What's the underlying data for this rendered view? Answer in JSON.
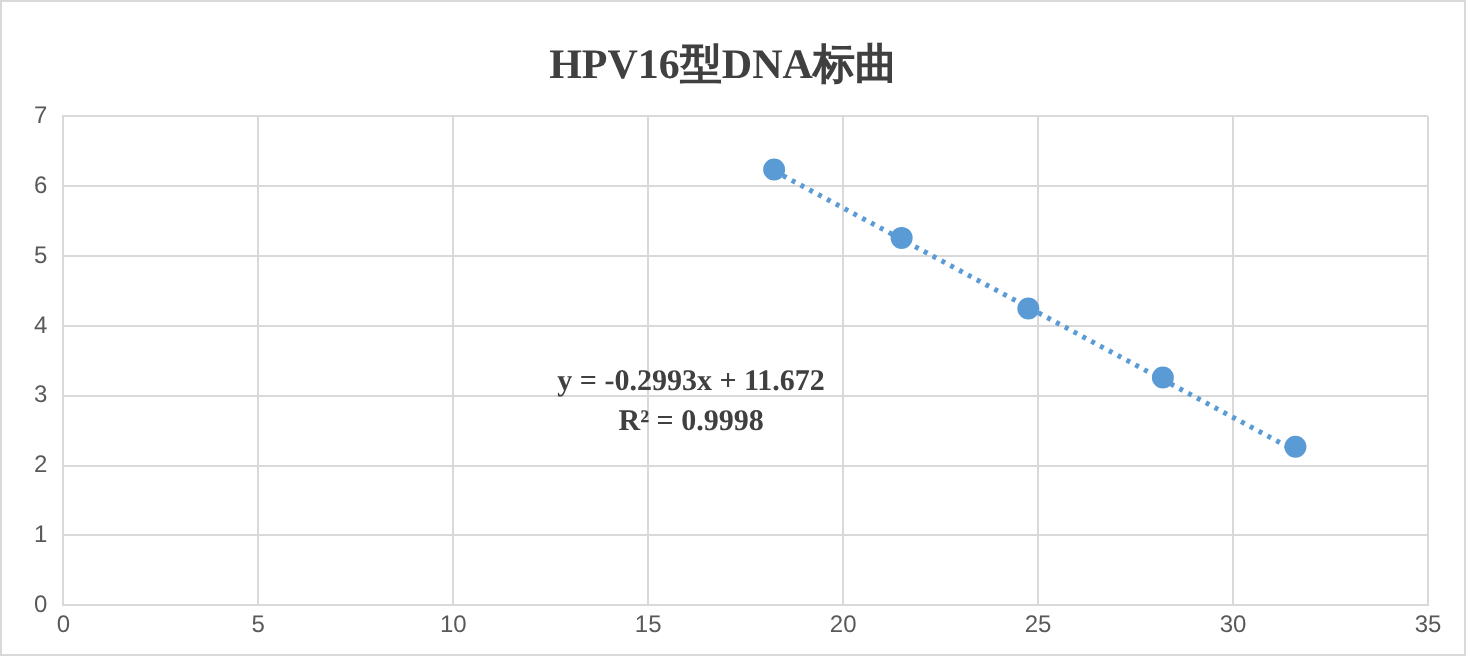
{
  "chart_data": {
    "type": "scatter",
    "title": "HPV16型DNA标曲",
    "x": [
      18.23,
      21.5,
      24.75,
      28.2,
      31.6
    ],
    "series": [
      {
        "color": "#5b9bd5",
        "values": [
          6.24,
          5.26,
          4.25,
          3.26,
          2.27
        ],
        "marker": "circle"
      },
      {
        "type": "line",
        "color": "#5b9bd5",
        "x": [
          18.23,
          31.6
        ],
        "values": [
          6.22,
          2.21
        ],
        "line_style": "dotted",
        "marker": "none"
      }
    ],
    "xlim": [
      0,
      35
    ],
    "xticks": [
      0,
      5,
      10,
      15,
      20,
      25,
      30,
      35
    ],
    "ylim": [
      0,
      7
    ],
    "yticks": [
      0,
      1,
      2,
      3,
      4,
      5,
      6,
      7
    ],
    "grid": true,
    "legend": false,
    "annotations": [
      "y = -0.2993x + 11.672",
      "R² = 0.9998"
    ]
  }
}
